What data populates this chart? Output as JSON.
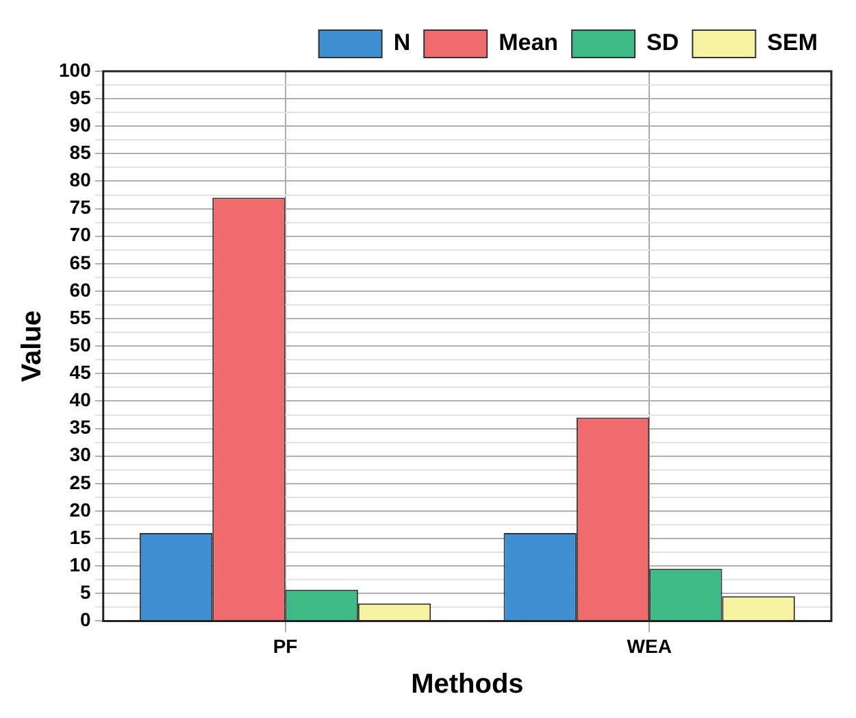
{
  "chart_data": {
    "type": "bar",
    "xlabel": "Methods",
    "ylabel": "Value",
    "categories": [
      "PF",
      "WEA"
    ],
    "series": [
      {
        "name": "N",
        "color": "#3f8fd2",
        "values": [
          16,
          16
        ]
      },
      {
        "name": "Mean",
        "color": "#f06b6e",
        "values": [
          77,
          37
        ]
      },
      {
        "name": "SD",
        "color": "#3dba85",
        "values": [
          5.7,
          9.5
        ]
      },
      {
        "name": "SEM",
        "color": "#f6f3a0",
        "values": [
          3.2,
          4.5
        ]
      }
    ],
    "ylim": [
      0,
      100
    ],
    "yticks": [
      0,
      {
        "value": 2.5,
        "label": null
      },
      5,
      {
        "value": 7.5,
        "label": null
      },
      10,
      {
        "value": 12.5,
        "label": null
      },
      15,
      {
        "value": 17.5,
        "label": null
      },
      20,
      {
        "value": 22.5,
        "label": null
      },
      25,
      {
        "value": 27.5,
        "label": null
      },
      30,
      {
        "value": 32.5,
        "label": null
      },
      35,
      {
        "value": 37.5,
        "label": null
      },
      40,
      {
        "value": 42.5,
        "label": null
      },
      45,
      {
        "value": 47.5,
        "label": null
      },
      50,
      {
        "value": 52.5,
        "label": null
      },
      55,
      {
        "value": 57.5,
        "label": null
      },
      60,
      {
        "value": 62.5,
        "label": null
      },
      65,
      {
        "value": 67.5,
        "label": null
      },
      70,
      {
        "value": 72.5,
        "label": null
      },
      75,
      {
        "value": 77.5,
        "label": null
      },
      80,
      {
        "value": 82.5,
        "label": null
      },
      85,
      {
        "value": 87.5,
        "label": null
      },
      90,
      {
        "value": 92.5,
        "label": null
      },
      95,
      {
        "value": 97.5,
        "label": null
      },
      100
    ],
    "grid": true,
    "legend": "top right"
  }
}
